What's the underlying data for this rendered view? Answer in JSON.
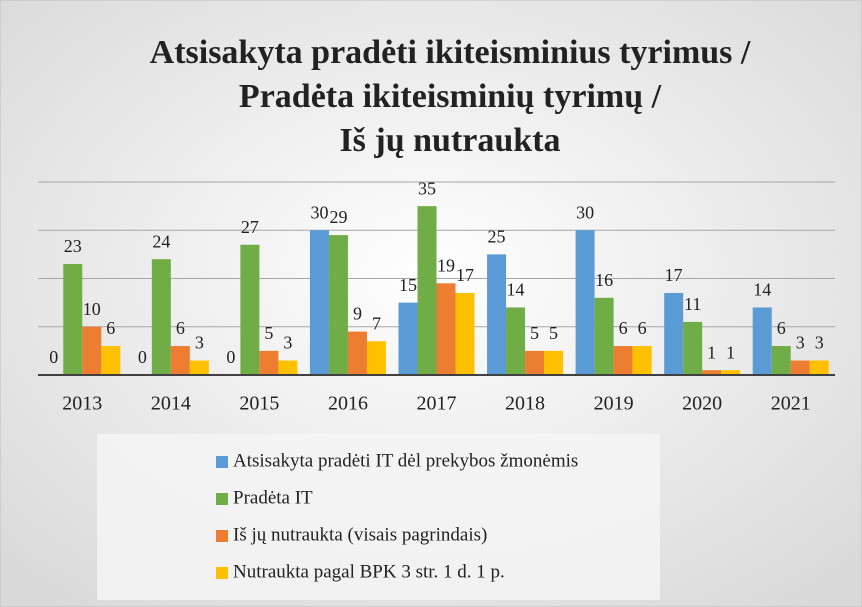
{
  "chart_data": {
    "type": "bar",
    "title": [
      "Atsisakyta pradėti ikiteisminius tyrimus /",
      "Pradėta ikiteisminių tyrimų /",
      "Iš jų nutraukta"
    ],
    "categories": [
      "2013",
      "2014",
      "2015",
      "2016",
      "2017",
      "2018",
      "2019",
      "2020",
      "2021"
    ],
    "series": [
      {
        "name": "Atsisakyta pradėti IT dėl prekybos žmonėmis",
        "color": "#5b9bd5",
        "values": [
          0,
          0,
          0,
          30,
          15,
          25,
          30,
          17,
          14
        ]
      },
      {
        "name": "Pradėta IT",
        "color": "#70ad47",
        "values": [
          23,
          24,
          27,
          29,
          35,
          14,
          16,
          11,
          6
        ]
      },
      {
        "name": "Iš jų nutraukta (visais pagrindais)",
        "color": "#ed7d31",
        "values": [
          10,
          6,
          5,
          9,
          19,
          5,
          6,
          1,
          3
        ]
      },
      {
        "name": "Nutraukta pagal BPK 3 str. 1 d. 1 p.",
        "color": "#ffc000",
        "values": [
          6,
          3,
          3,
          7,
          17,
          5,
          6,
          1,
          3
        ]
      }
    ],
    "ylim": [
      0,
      40
    ],
    "yticks": [
      0,
      10,
      20,
      30,
      40
    ],
    "grid": true
  }
}
